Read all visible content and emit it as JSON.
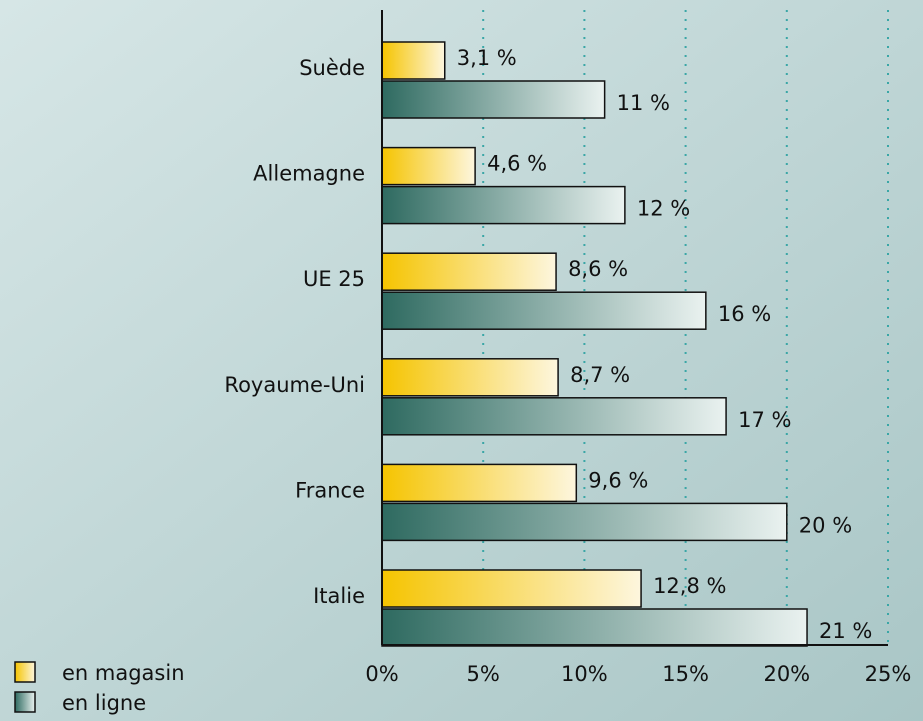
{
  "chart_data": {
    "type": "bar",
    "orientation": "horizontal",
    "categories": [
      "Suède",
      "Allemagne",
      "UE 25",
      "Royaume-Uni",
      "France",
      "Italie"
    ],
    "series": [
      {
        "name": "en magasin",
        "color": "#f5c400",
        "values": [
          3.1,
          4.6,
          8.6,
          8.7,
          9.6,
          12.8
        ],
        "value_labels": [
          "3,1 %",
          "4,6 %",
          "8,6 %",
          "8,7 %",
          "9,6 %",
          "12,8 %"
        ]
      },
      {
        "name": "en ligne",
        "color": "#2e6a60",
        "values": [
          11,
          12,
          16,
          17,
          20,
          21
        ],
        "value_labels": [
          "11 %",
          "12 %",
          "16 %",
          "17 %",
          "20 %",
          "21 %"
        ]
      }
    ],
    "xlim": [
      0,
      25
    ],
    "xticks": [
      {
        "value": 0,
        "label": "0%"
      },
      {
        "value": 5,
        "label": "5%"
      },
      {
        "value": 10,
        "label": "10%"
      },
      {
        "value": 15,
        "label": "15%"
      },
      {
        "value": 20,
        "label": "20%"
      },
      {
        "value": 25,
        "label": "25%"
      }
    ],
    "grid": true,
    "legend": "bottom-left"
  }
}
